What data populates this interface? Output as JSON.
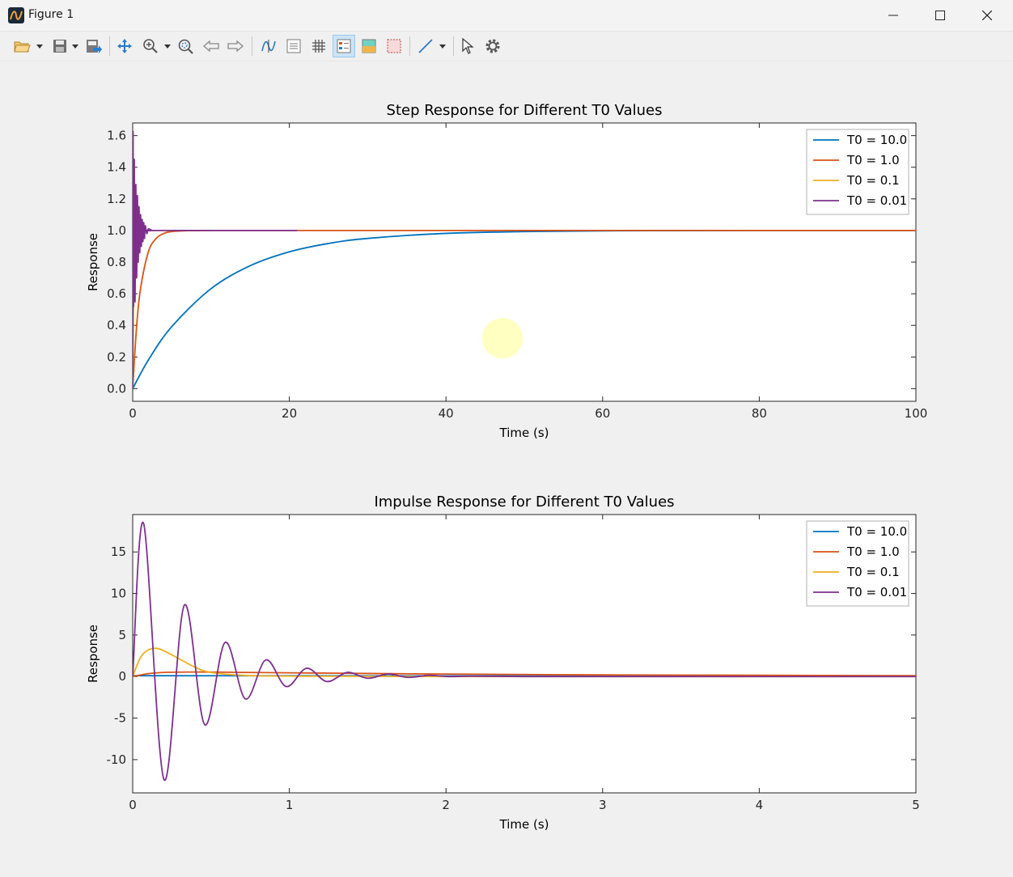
{
  "window": {
    "title": "Figure 1",
    "icon": "matlab-figure-icon"
  },
  "toolbar": {
    "items": [
      "open-file-icon",
      "save-icon",
      "export-icon",
      "pan-icon",
      "zoom-in-icon",
      "zoom-fit-icon",
      "back-arrow-icon",
      "forward-arrow-icon",
      "data-cursor-icon",
      "insert-colorbar-icon",
      "grid-icon",
      "legend-icon",
      "colormap-icon",
      "box-icon",
      "line-tool-icon",
      "pointer-icon",
      "settings-icon"
    ]
  },
  "chart_data": [
    {
      "type": "line",
      "title": "Step Response for Different T0 Values",
      "xlabel": "Time (s)",
      "ylabel": "Response",
      "xlim": [
        0,
        100
      ],
      "ylim": [
        -0.08,
        1.68
      ],
      "xticks": [
        "0",
        "20",
        "40",
        "60",
        "80",
        "100"
      ],
      "yticks": [
        "0.0",
        "0.2",
        "0.4",
        "0.6",
        "0.8",
        "1.0",
        "1.2",
        "1.4",
        "1.6"
      ],
      "legend_position": "top-right",
      "series": [
        {
          "name": "T0 = 10.0",
          "color": "#0072bd",
          "x": [
            0,
            2,
            5,
            10,
            15,
            20,
            25,
            30,
            40,
            50,
            60,
            70,
            80,
            90,
            100
          ],
          "y": [
            0,
            0.181,
            0.393,
            0.632,
            0.777,
            0.865,
            0.918,
            0.95,
            0.982,
            0.993,
            0.998,
            0.999,
            1.0,
            1.0,
            1.0
          ]
        },
        {
          "name": "T0 = 1.0",
          "color": "#d95319",
          "x": [
            0,
            0.5,
            1,
            2,
            3,
            4,
            5,
            7,
            10,
            15,
            20,
            40,
            60,
            80,
            100
          ],
          "y": [
            0,
            0.393,
            0.632,
            0.865,
            0.95,
            0.982,
            0.993,
            0.999,
            1.0,
            1.0,
            1.0,
            1.0,
            1.0,
            1.0,
            1.0
          ]
        },
        {
          "name": "T0 = 0.1",
          "color": "#edb120",
          "x": [
            0,
            0.05,
            0.1,
            0.2,
            0.3,
            0.5,
            0.7,
            1,
            2,
            5
          ],
          "y": [
            0,
            0.25,
            0.45,
            0.72,
            0.87,
            0.98,
            1.0,
            1.0,
            1.0,
            1.0
          ]
        },
        {
          "name": "T0 = 0.01",
          "color": "#7e2f8e",
          "x": [
            0,
            0.05,
            0.1,
            0.2,
            0.3,
            0.4,
            0.5,
            0.6,
            0.7,
            0.8,
            0.9,
            1.0,
            1.1,
            1.2,
            1.3,
            1.4,
            1.5,
            1.6,
            1.8,
            2.0,
            2.5,
            3,
            21
          ],
          "y": [
            0,
            1.62,
            0.52,
            1.45,
            0.55,
            1.29,
            0.7,
            1.22,
            0.8,
            1.15,
            0.86,
            1.1,
            0.9,
            1.07,
            0.93,
            1.05,
            0.95,
            1.03,
            0.98,
            1.01,
            1.0,
            1.0,
            1.0
          ]
        }
      ],
      "annotation": "yellow-cursor-highlight"
    },
    {
      "type": "line",
      "title": "Impulse Response for Different T0 Values",
      "xlabel": "Time (s)",
      "ylabel": "Response",
      "xlim": [
        0,
        5
      ],
      "ylim": [
        -14,
        19.5
      ],
      "xticks": [
        "0",
        "1",
        "2",
        "3",
        "4",
        "5"
      ],
      "yticks": [
        "-10",
        "-5",
        "0",
        "5",
        "10",
        "15"
      ],
      "legend_position": "top-right",
      "series": [
        {
          "name": "T0 = 10.0",
          "color": "#0072bd",
          "x": [
            0,
            1,
            2,
            3,
            4,
            5
          ],
          "y": [
            0.1,
            0.09,
            0.08,
            0.07,
            0.07,
            0.06
          ]
        },
        {
          "name": "T0 = 1.0",
          "color": "#d95319",
          "x": [
            0,
            0.1,
            0.2,
            0.4,
            0.7,
            1,
            1.5,
            2,
            3,
            4,
            5
          ],
          "y": [
            0,
            0.35,
            0.5,
            0.55,
            0.5,
            0.45,
            0.37,
            0.3,
            0.2,
            0.15,
            0.1
          ]
        },
        {
          "name": "T0 = 0.1",
          "color": "#edb120",
          "x": [
            0,
            0.05,
            0.1,
            0.15,
            0.2,
            0.3,
            0.4,
            0.5,
            0.7,
            1,
            2,
            5
          ],
          "y": [
            0,
            2.3,
            3.2,
            3.4,
            3.1,
            2.1,
            1.1,
            0.5,
            0.15,
            0.05,
            0,
            0
          ]
        },
        {
          "name": "T0 = 0.01",
          "color": "#7e2f8e",
          "x": [
            0,
            0.07,
            0.2,
            0.33,
            0.46,
            0.59,
            0.72,
            0.85,
            0.98,
            1.11,
            1.24,
            1.37,
            1.5,
            1.63,
            1.76,
            1.89,
            2.02,
            2.15,
            2.5,
            3,
            4,
            5
          ],
          "y": [
            0,
            18.4,
            -12.4,
            8.6,
            -5.8,
            4.1,
            -2.7,
            2.0,
            -1.2,
            1.0,
            -0.6,
            0.5,
            -0.2,
            0.3,
            -0.1,
            0.15,
            0,
            0.05,
            0,
            0,
            0,
            0
          ]
        }
      ]
    }
  ]
}
